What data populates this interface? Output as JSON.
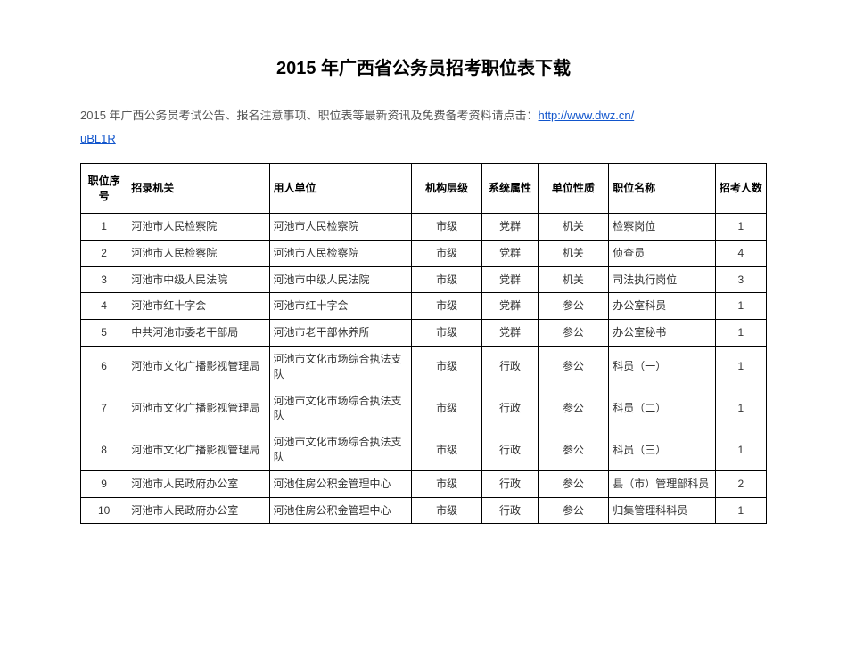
{
  "title": "2015 年广西省公务员招考职位表下载",
  "intro_text": "2015 年广西公务员考试公告、报名注意事项、职位表等最新资讯及免费备考资料请点击：",
  "intro_link_text_1": "http://www.dwz.cn/",
  "intro_link_text_2": "uBL1R",
  "table": {
    "columns": [
      {
        "key": "idx",
        "label": "职位序号",
        "cls": "c-idx"
      },
      {
        "key": "org",
        "label": "招录机关",
        "cls": "c-org"
      },
      {
        "key": "unit",
        "label": "用人单位",
        "cls": "c-unit"
      },
      {
        "key": "lvl",
        "label": "机构层级",
        "cls": "c-lvl"
      },
      {
        "key": "sys",
        "label": "系统属性",
        "cls": "c-sys"
      },
      {
        "key": "nat",
        "label": "单位性质",
        "cls": "c-nat"
      },
      {
        "key": "pos",
        "label": "职位名称",
        "cls": "c-pos"
      },
      {
        "key": "cnt",
        "label": "招考人数",
        "cls": "c-cnt"
      }
    ],
    "rows": [
      [
        "1",
        "河池市人民检察院",
        "河池市人民检察院",
        "市级",
        "党群",
        "机关",
        "检察岗位",
        "1"
      ],
      [
        "2",
        "河池市人民检察院",
        "河池市人民检察院",
        "市级",
        "党群",
        "机关",
        "侦查员",
        "4"
      ],
      [
        "3",
        "河池市中级人民法院",
        "河池市中级人民法院",
        "市级",
        "党群",
        "机关",
        "司法执行岗位",
        "3"
      ],
      [
        "4",
        "河池市红十字会",
        "河池市红十字会",
        "市级",
        "党群",
        "参公",
        "办公室科员",
        "1"
      ],
      [
        "5",
        "中共河池市委老干部局",
        "河池市老干部休养所",
        "市级",
        "党群",
        "参公",
        "办公室秘书",
        "1"
      ],
      [
        "6",
        "河池市文化广播影视管理局",
        "河池市文化市场综合执法支队",
        "市级",
        "行政",
        "参公",
        "科员（一）",
        "1"
      ],
      [
        "7",
        "河池市文化广播影视管理局",
        "河池市文化市场综合执法支队",
        "市级",
        "行政",
        "参公",
        "科员（二）",
        "1"
      ],
      [
        "8",
        "河池市文化广播影视管理局",
        "河池市文化市场综合执法支队",
        "市级",
        "行政",
        "参公",
        "科员（三）",
        "1"
      ],
      [
        "9",
        "河池市人民政府办公室",
        "河池住房公积金管理中心",
        "市级",
        "行政",
        "参公",
        "县（市）管理部科员",
        "2"
      ],
      [
        "10",
        "河池市人民政府办公室",
        "河池住房公积金管理中心",
        "市级",
        "行政",
        "参公",
        "归集管理科科员",
        "1"
      ]
    ]
  },
  "colors": {
    "text": "#000000",
    "body_text": "#333333",
    "intro_text": "#555555",
    "link": "#1155cc",
    "border": "#000000",
    "background": "#ffffff"
  },
  "typography": {
    "title_fontsize": 20,
    "intro_fontsize": 13,
    "cell_fontsize": 12,
    "font_family": "Microsoft YaHei"
  }
}
